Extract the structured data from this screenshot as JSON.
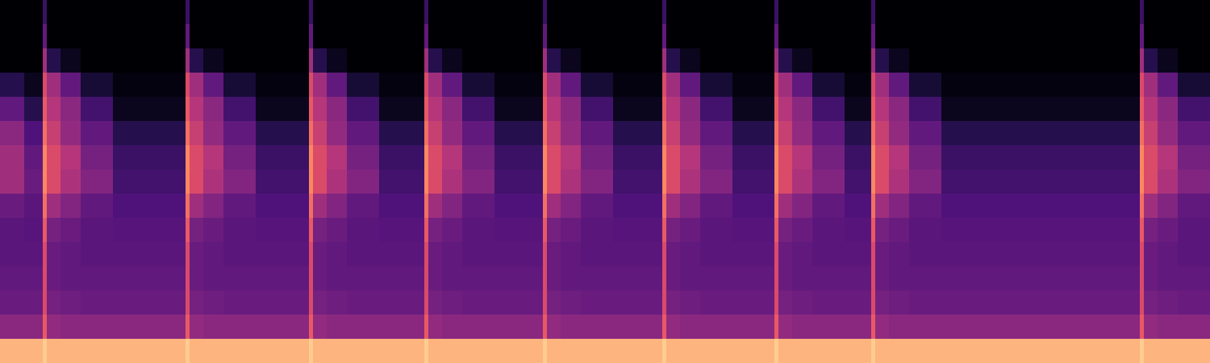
{
  "chart_data": {
    "type": "heatmap",
    "x": [
      0,
      30,
      53,
      58,
      75,
      100,
      140,
      230,
      235,
      252,
      277,
      317,
      383,
      388,
      405,
      430,
      470,
      526,
      531,
      548,
      573,
      613,
      673,
      678,
      695,
      720,
      760,
      821,
      826,
      843,
      868,
      908,
      960,
      965,
      982,
      1007,
      1047,
      1080,
      1085,
      1102,
      1127,
      1167,
      1413,
      1418,
      1435,
      1460,
      1500
    ],
    "y": [
      0,
      30,
      60,
      90,
      120,
      150,
      180,
      210,
      240,
      270,
      300,
      330,
      360,
      390,
      420,
      450
    ],
    "z": [
      [
        0,
        0,
        0.2,
        0,
        0,
        0,
        0,
        0.2,
        0,
        0,
        0,
        0,
        0.2,
        0,
        0,
        0,
        0,
        0.2,
        0,
        0,
        0,
        0,
        0.2,
        0,
        0,
        0,
        0,
        0.2,
        0,
        0,
        0,
        0,
        0.2,
        0,
        0,
        0,
        0,
        0.2,
        0,
        0,
        0,
        0,
        0.2,
        0,
        0,
        0
      ],
      [
        0,
        0,
        0.3,
        0,
        0,
        0,
        0,
        0.3,
        0,
        0,
        0,
        0,
        0.3,
        0,
        0,
        0,
        0,
        0.3,
        0,
        0,
        0,
        0,
        0.3,
        0,
        0,
        0,
        0,
        0.3,
        0,
        0,
        0,
        0,
        0.3,
        0,
        0,
        0,
        0,
        0.3,
        0,
        0,
        0,
        0,
        0.3,
        0,
        0,
        0
      ],
      [
        0,
        0,
        0.45,
        0.15,
        0.05,
        0,
        0,
        0.45,
        0.15,
        0.05,
        0,
        0,
        0.45,
        0.15,
        0.05,
        0,
        0,
        0.45,
        0.15,
        0.05,
        0,
        0,
        0.45,
        0.15,
        0.05,
        0,
        0,
        0.45,
        0.15,
        0.05,
        0,
        0,
        0.45,
        0.15,
        0.05,
        0,
        0,
        0.45,
        0.15,
        0.05,
        0,
        0,
        0.45,
        0.15,
        0.05,
        0
      ],
      [
        0.15,
        0.05,
        0.6,
        0.45,
        0.3,
        0.1,
        0.02,
        0.6,
        0.45,
        0.3,
        0.1,
        0.02,
        0.6,
        0.45,
        0.3,
        0.1,
        0.02,
        0.6,
        0.45,
        0.3,
        0.1,
        0.02,
        0.6,
        0.45,
        0.3,
        0.1,
        0.02,
        0.6,
        0.45,
        0.3,
        0.1,
        0.02,
        0.6,
        0.45,
        0.3,
        0.1,
        0.02,
        0.6,
        0.45,
        0.3,
        0.1,
        0.02,
        0.6,
        0.45,
        0.3,
        0.1
      ],
      [
        0.3,
        0.15,
        0.65,
        0.5,
        0.4,
        0.22,
        0.05,
        0.65,
        0.5,
        0.4,
        0.22,
        0.05,
        0.65,
        0.5,
        0.4,
        0.22,
        0.05,
        0.65,
        0.5,
        0.4,
        0.22,
        0.05,
        0.65,
        0.5,
        0.4,
        0.22,
        0.05,
        0.65,
        0.5,
        0.4,
        0.22,
        0.05,
        0.65,
        0.5,
        0.4,
        0.22,
        0.05,
        0.65,
        0.5,
        0.4,
        0.22,
        0.05,
        0.65,
        0.5,
        0.4,
        0.22
      ],
      [
        0.4,
        0.25,
        0.7,
        0.55,
        0.42,
        0.3,
        0.15,
        0.7,
        0.55,
        0.42,
        0.3,
        0.15,
        0.7,
        0.55,
        0.42,
        0.3,
        0.15,
        0.7,
        0.55,
        0.42,
        0.3,
        0.15,
        0.7,
        0.55,
        0.42,
        0.3,
        0.15,
        0.7,
        0.55,
        0.42,
        0.3,
        0.15,
        0.7,
        0.55,
        0.42,
        0.3,
        0.15,
        0.7,
        0.55,
        0.42,
        0.3,
        0.15,
        0.7,
        0.55,
        0.42,
        0.3
      ],
      [
        0.45,
        0.3,
        0.75,
        0.6,
        0.5,
        0.35,
        0.2,
        0.75,
        0.6,
        0.5,
        0.35,
        0.2,
        0.75,
        0.6,
        0.5,
        0.35,
        0.2,
        0.75,
        0.6,
        0.5,
        0.35,
        0.2,
        0.75,
        0.6,
        0.5,
        0.35,
        0.2,
        0.75,
        0.6,
        0.5,
        0.35,
        0.2,
        0.75,
        0.6,
        0.5,
        0.35,
        0.2,
        0.75,
        0.6,
        0.5,
        0.35,
        0.2,
        0.75,
        0.6,
        0.5,
        0.35
      ],
      [
        0.45,
        0.32,
        0.75,
        0.6,
        0.48,
        0.38,
        0.22,
        0.75,
        0.6,
        0.48,
        0.38,
        0.22,
        0.75,
        0.6,
        0.48,
        0.38,
        0.22,
        0.75,
        0.6,
        0.48,
        0.38,
        0.22,
        0.75,
        0.6,
        0.48,
        0.38,
        0.22,
        0.75,
        0.6,
        0.48,
        0.38,
        0.22,
        0.75,
        0.6,
        0.48,
        0.38,
        0.22,
        0.75,
        0.6,
        0.48,
        0.38,
        0.22,
        0.75,
        0.6,
        0.48,
        0.38
      ],
      [
        0.32,
        0.28,
        0.7,
        0.45,
        0.38,
        0.3,
        0.25,
        0.7,
        0.45,
        0.38,
        0.3,
        0.25,
        0.7,
        0.45,
        0.38,
        0.3,
        0.25,
        0.7,
        0.45,
        0.38,
        0.3,
        0.25,
        0.7,
        0.45,
        0.38,
        0.3,
        0.25,
        0.7,
        0.45,
        0.38,
        0.3,
        0.25,
        0.7,
        0.45,
        0.38,
        0.3,
        0.25,
        0.7,
        0.45,
        0.38,
        0.3,
        0.25,
        0.7,
        0.45,
        0.38,
        0.3
      ],
      [
        0.28,
        0.27,
        0.65,
        0.35,
        0.32,
        0.28,
        0.27,
        0.65,
        0.35,
        0.32,
        0.28,
        0.27,
        0.65,
        0.35,
        0.32,
        0.28,
        0.27,
        0.65,
        0.35,
        0.32,
        0.28,
        0.27,
        0.65,
        0.35,
        0.32,
        0.28,
        0.27,
        0.65,
        0.35,
        0.32,
        0.28,
        0.27,
        0.65,
        0.35,
        0.32,
        0.28,
        0.27,
        0.65,
        0.35,
        0.32,
        0.28,
        0.27,
        0.65,
        0.35,
        0.32,
        0.28
      ],
      [
        0.28,
        0.28,
        0.6,
        0.32,
        0.3,
        0.28,
        0.28,
        0.6,
        0.32,
        0.3,
        0.28,
        0.28,
        0.6,
        0.32,
        0.3,
        0.28,
        0.28,
        0.6,
        0.32,
        0.3,
        0.28,
        0.28,
        0.6,
        0.32,
        0.3,
        0.28,
        0.28,
        0.6,
        0.32,
        0.3,
        0.28,
        0.28,
        0.6,
        0.32,
        0.3,
        0.28,
        0.28,
        0.6,
        0.32,
        0.3,
        0.28,
        0.28,
        0.6,
        0.32,
        0.3,
        0.28
      ],
      [
        0.3,
        0.3,
        0.6,
        0.32,
        0.3,
        0.3,
        0.3,
        0.6,
        0.32,
        0.3,
        0.3,
        0.3,
        0.6,
        0.32,
        0.3,
        0.3,
        0.3,
        0.6,
        0.32,
        0.3,
        0.3,
        0.3,
        0.6,
        0.32,
        0.3,
        0.3,
        0.3,
        0.6,
        0.32,
        0.3,
        0.3,
        0.3,
        0.6,
        0.32,
        0.3,
        0.3,
        0.3,
        0.6,
        0.32,
        0.3,
        0.3,
        0.3,
        0.6,
        0.32,
        0.3,
        0.3
      ],
      [
        0.32,
        0.32,
        0.6,
        0.35,
        0.33,
        0.32,
        0.32,
        0.6,
        0.35,
        0.33,
        0.32,
        0.32,
        0.6,
        0.35,
        0.33,
        0.32,
        0.32,
        0.6,
        0.35,
        0.33,
        0.32,
        0.32,
        0.6,
        0.35,
        0.33,
        0.32,
        0.32,
        0.6,
        0.35,
        0.33,
        0.32,
        0.32,
        0.6,
        0.35,
        0.33,
        0.32,
        0.32,
        0.6,
        0.35,
        0.33,
        0.32,
        0.32,
        0.6,
        0.35,
        0.33,
        0.32
      ],
      [
        0.4,
        0.4,
        0.65,
        0.42,
        0.4,
        0.4,
        0.4,
        0.65,
        0.42,
        0.4,
        0.4,
        0.4,
        0.65,
        0.42,
        0.4,
        0.4,
        0.4,
        0.65,
        0.42,
        0.4,
        0.4,
        0.4,
        0.65,
        0.42,
        0.4,
        0.4,
        0.4,
        0.65,
        0.42,
        0.4,
        0.4,
        0.4,
        0.65,
        0.42,
        0.4,
        0.4,
        0.4,
        0.65,
        0.42,
        0.4,
        0.4,
        0.4,
        0.65,
        0.42,
        0.4,
        0.4
      ],
      [
        0.85,
        0.85,
        0.9,
        0.85,
        0.85,
        0.85,
        0.85,
        0.9,
        0.85,
        0.85,
        0.85,
        0.85,
        0.9,
        0.85,
        0.85,
        0.85,
        0.85,
        0.9,
        0.85,
        0.85,
        0.85,
        0.85,
        0.9,
        0.85,
        0.85,
        0.85,
        0.85,
        0.9,
        0.85,
        0.85,
        0.85,
        0.85,
        0.9,
        0.85,
        0.85,
        0.85,
        0.85,
        0.9,
        0.85,
        0.85,
        0.85,
        0.85,
        0.9,
        0.85,
        0.85,
        0.85
      ]
    ],
    "zlim": [
      0,
      1
    ],
    "xlim": [
      0,
      1500
    ],
    "ylim": [
      450,
      0
    ],
    "color": "magma",
    "tick_labels": false,
    "grid": false
  }
}
